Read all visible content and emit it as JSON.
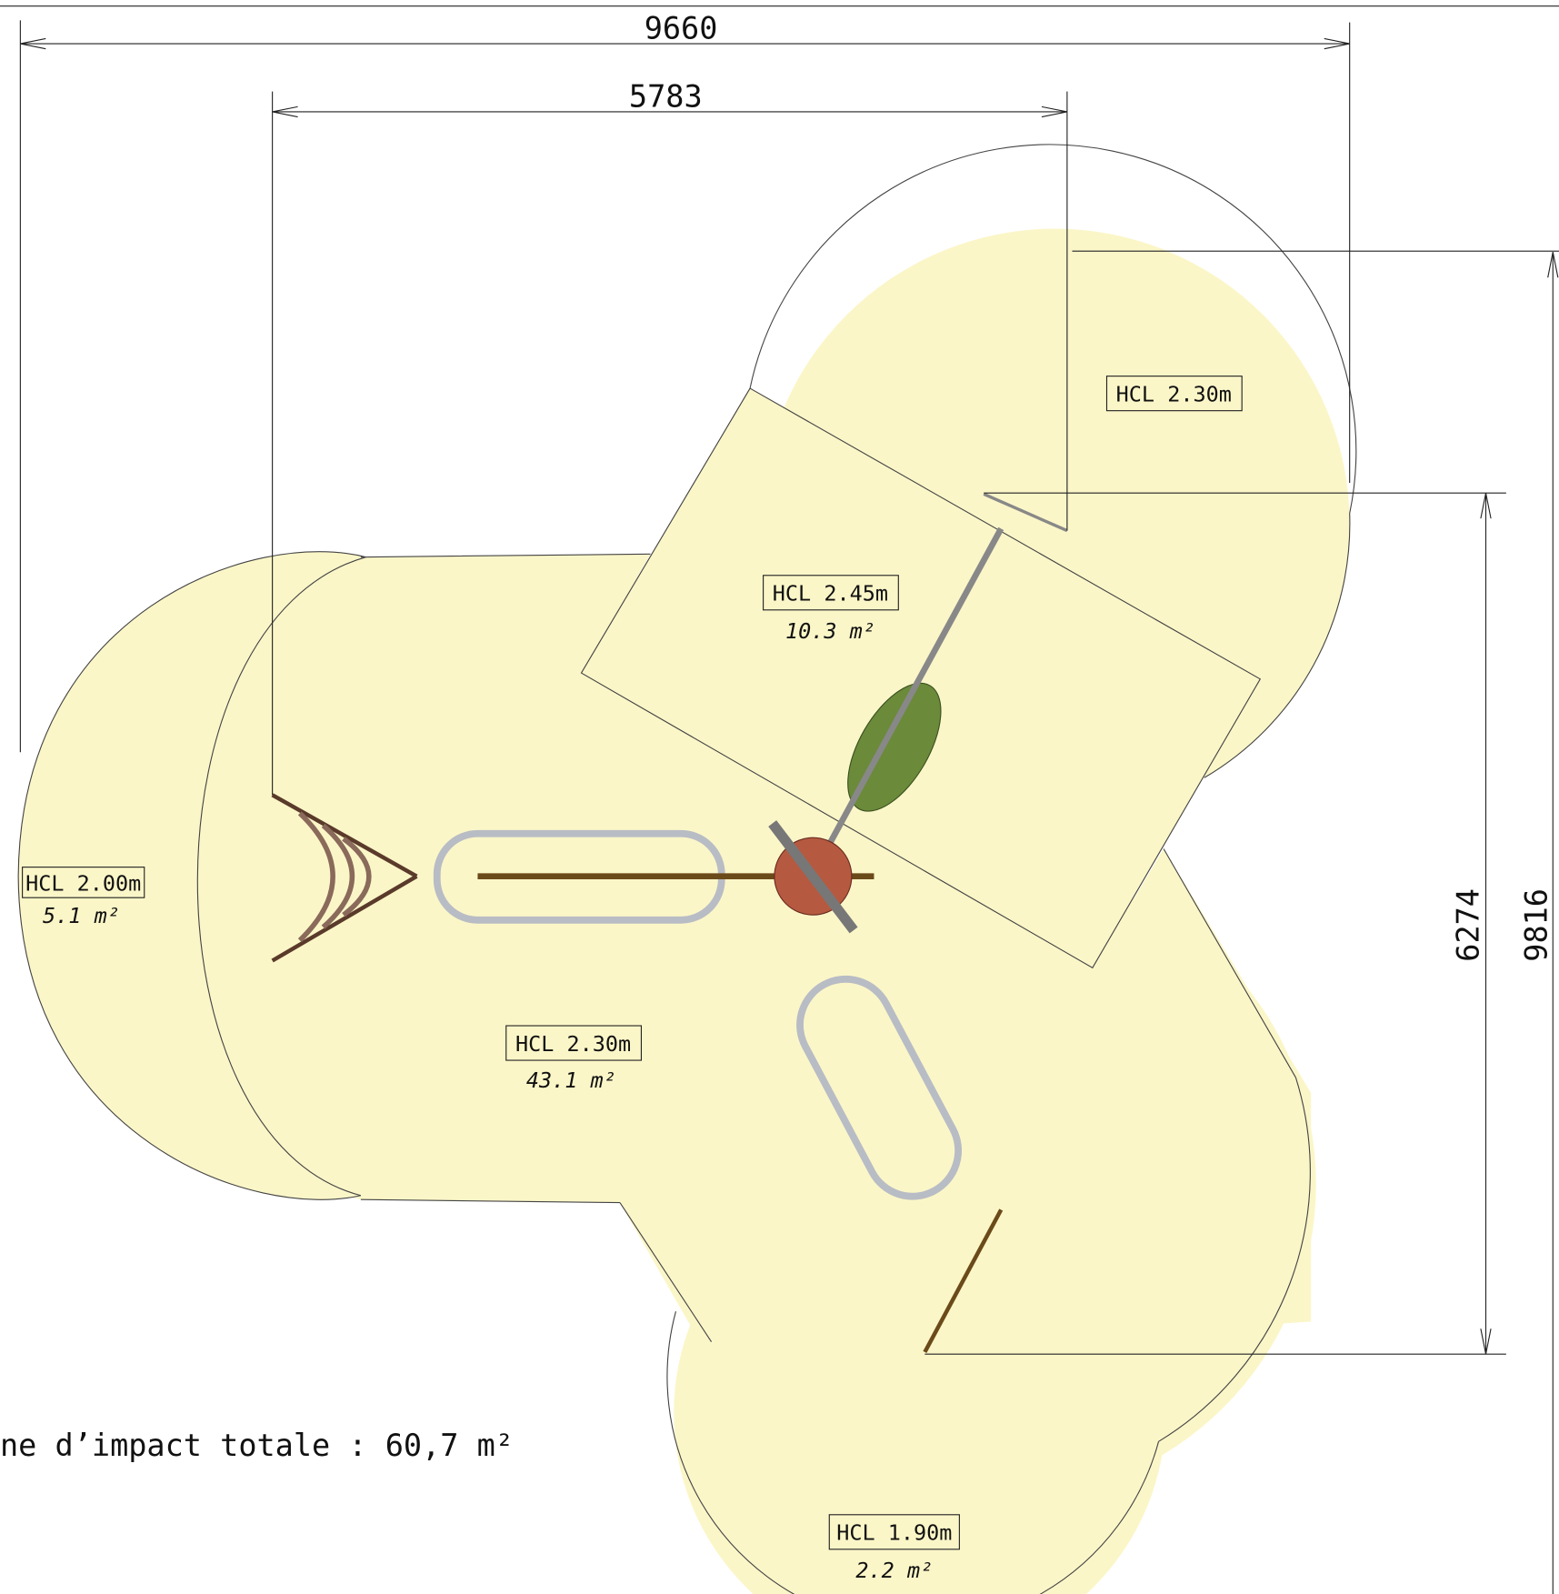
{
  "dimensions": [
    "9660",
    "5783",
    "6274",
    "9816"
  ],
  "zones": [
    {
      "hcl": "HCL 2.30m"
    },
    {
      "hcl": "HCL 2.45m",
      "area": "10.3 m²"
    },
    {
      "hcl": "HCL 2.00m",
      "area": "5.1 m²"
    },
    {
      "hcl": "HCL 2.30m",
      "area": "43.1 m²"
    },
    {
      "hcl": "HCL 1.90m",
      "area": "2.2 m²"
    }
  ],
  "total": "ne d’impact totale : 60,7 m²"
}
